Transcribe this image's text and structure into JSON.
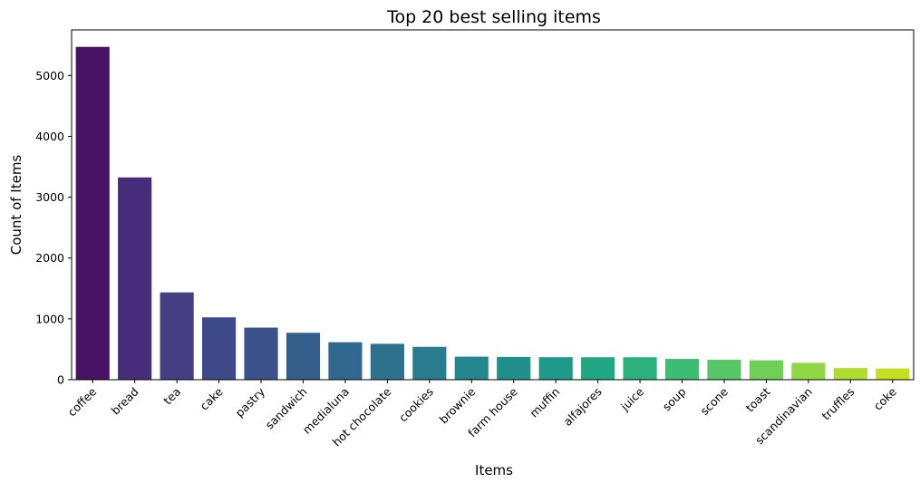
{
  "chart_data": {
    "type": "bar",
    "title": "Top 20 best selling items",
    "xlabel": "Items",
    "ylabel": "Count of Items",
    "ylim": [
      0,
      5750
    ],
    "yticks": [
      0,
      1000,
      2000,
      3000,
      4000,
      5000
    ],
    "grid": false,
    "legend": "none",
    "categories": [
      "coffee",
      "bread",
      "tea",
      "cake",
      "pastry",
      "sandwich",
      "medialuna",
      "hot chocolate",
      "cookies",
      "brownie",
      "farm house",
      "muffin",
      "alfajores",
      "juice",
      "soup",
      "scone",
      "toast",
      "scandinavian",
      "truffles",
      "coke"
    ],
    "values": [
      5471,
      3325,
      1435,
      1025,
      856,
      771,
      616,
      590,
      540,
      379,
      374,
      370,
      369,
      369,
      342,
      327,
      318,
      277,
      193,
      185
    ],
    "colors": [
      "#471164",
      "#472c7a",
      "#463e82",
      "#3e4989",
      "#3b528b",
      "#355e8d",
      "#31688e",
      "#2d718e",
      "#287c8e",
      "#24868e",
      "#21908d",
      "#1f9a8a",
      "#22a785",
      "#2cb17e",
      "#3dbc74",
      "#56c667",
      "#70cf57",
      "#8fd744",
      "#b0dd2f",
      "#c5e021"
    ]
  }
}
